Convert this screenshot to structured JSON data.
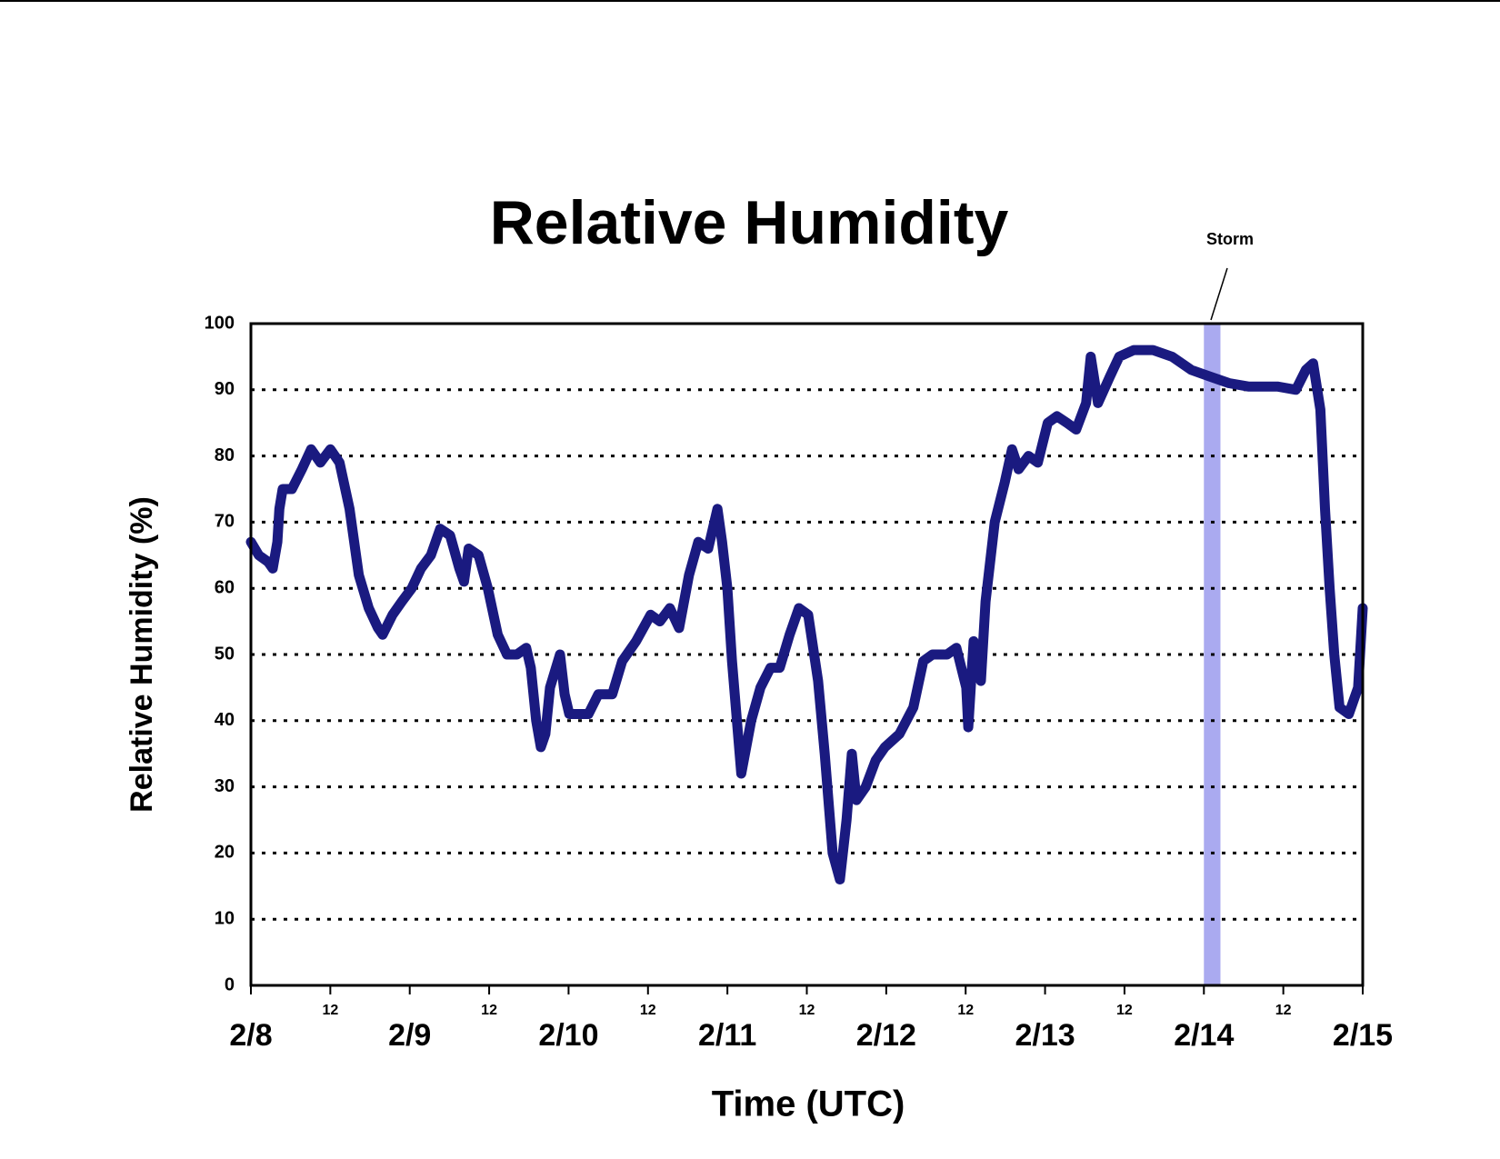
{
  "chart_data": {
    "type": "line",
    "title": "Relative Humidity",
    "x_label": "Time (UTC)",
    "y_label": "Relative Humidity (%)",
    "annotation": "Storm",
    "storm_band": [
      144,
      146.5
    ],
    "storm_color": "#aaaaf0",
    "series": [
      {
        "name": "Relative Humidity",
        "color": "#1a1a80",
        "x": [
          0,
          1.2,
          2.6,
          3.3,
          4.0,
          4.3,
          4.8,
          6.2,
          7.7,
          9.1,
          10.5,
          12.0,
          13.4,
          14.9,
          16.3,
          17.8,
          19.2,
          19.9,
          21.4,
          22.8,
          24.3,
          25.7,
          27.2,
          28.6,
          30.1,
          31.5,
          32.2,
          32.9,
          34.4,
          35.8,
          37.3,
          38.7,
          40.2,
          41.6,
          42.3,
          43.1,
          43.8,
          44.5,
          45.2,
          46.7,
          47.4,
          48.1,
          49.6,
          51.0,
          52.5,
          54.6,
          56.1,
          58.2,
          60.4,
          61.8,
          63.3,
          64.7,
          66.2,
          67.6,
          69.1,
          70.5,
          71.2,
          72.0,
          72.7,
          74.1,
          75.6,
          77.0,
          78.5,
          79.9,
          81.4,
          82.8,
          84.2,
          85.7,
          86.7,
          87.9,
          89.0,
          90.0,
          90.8,
          91.5,
          92.9,
          94.4,
          95.8,
          98.0,
          100.1,
          101.6,
          103.0,
          105.2,
          106.6,
          108.1,
          108.4,
          109.2,
          110.3,
          111.0,
          112.4,
          113.9,
          115.0,
          116.0,
          117.5,
          118.9,
          120.4,
          121.8,
          123.3,
          124.7,
          126.2,
          126.9,
          128.0,
          129.8,
          131.2,
          133.4,
          136.3,
          139.2,
          142.1,
          144.9,
          147.8,
          150.7,
          155.1,
          157.9,
          159.4,
          160.5,
          161.6,
          162.3,
          163.0,
          163.7,
          164.5,
          165.9,
          167.3,
          168.0
        ],
        "values": [
          67,
          65,
          64,
          63,
          67,
          72,
          75,
          75,
          78,
          81,
          79,
          81,
          79,
          72,
          62,
          57,
          54,
          53,
          56,
          58,
          60,
          63,
          65,
          69,
          68,
          63,
          61,
          66,
          65,
          60,
          53,
          50,
          50,
          51,
          48,
          40,
          36,
          38,
          45,
          50,
          44,
          41,
          41,
          41,
          44,
          44,
          49,
          52,
          56,
          55,
          57,
          54,
          62,
          67,
          66,
          72,
          67,
          60,
          49,
          32,
          40,
          45,
          48,
          48,
          53,
          57,
          56,
          46,
          35,
          20,
          16,
          25,
          35,
          28,
          30,
          34,
          36,
          38,
          42,
          49,
          50,
          50,
          51,
          45,
          39,
          52,
          46,
          58,
          70,
          76,
          81,
          78,
          80,
          79,
          85,
          86,
          85,
          84,
          88,
          95,
          88,
          92,
          95,
          96,
          96,
          95,
          93,
          92,
          91,
          90.5,
          90.5,
          90,
          93,
          94,
          87,
          72,
          60,
          50,
          42,
          41,
          45,
          57
        ]
      }
    ],
    "xlim": [
      0,
      168
    ],
    "xticks": [
      {
        "value": 0,
        "label": "2/8"
      },
      {
        "value": 12,
        "label": "12"
      },
      {
        "value": 24,
        "label": "2/9"
      },
      {
        "value": 36,
        "label": "12"
      },
      {
        "value": 48,
        "label": "2/10"
      },
      {
        "value": 60,
        "label": "12"
      },
      {
        "value": 72,
        "label": "2/11"
      },
      {
        "value": 84,
        "label": "12"
      },
      {
        "value": 96,
        "label": "2/12"
      },
      {
        "value": 108,
        "label": "12"
      },
      {
        "value": 120,
        "label": "2/13"
      },
      {
        "value": 132,
        "label": "12"
      },
      {
        "value": 144,
        "label": "2/14"
      },
      {
        "value": 156,
        "label": "12"
      },
      {
        "value": 168,
        "label": "2/15"
      }
    ],
    "ylim": [
      0,
      100
    ],
    "yticks": [
      0,
      10,
      20,
      30,
      40,
      50,
      60,
      70,
      80,
      90,
      100
    ],
    "grid": true
  }
}
